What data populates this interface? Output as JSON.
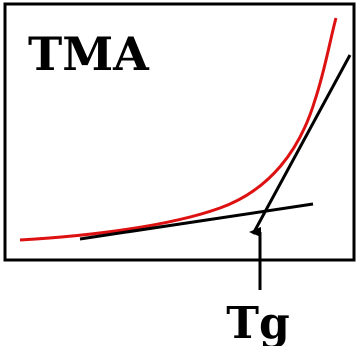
{
  "diagram": {
    "title": "TMA",
    "annotation_label": "Tg",
    "colors": {
      "curve": "#dd1111",
      "tangents": "#000000",
      "frame": "#000000",
      "background": "#ffffff"
    }
  }
}
